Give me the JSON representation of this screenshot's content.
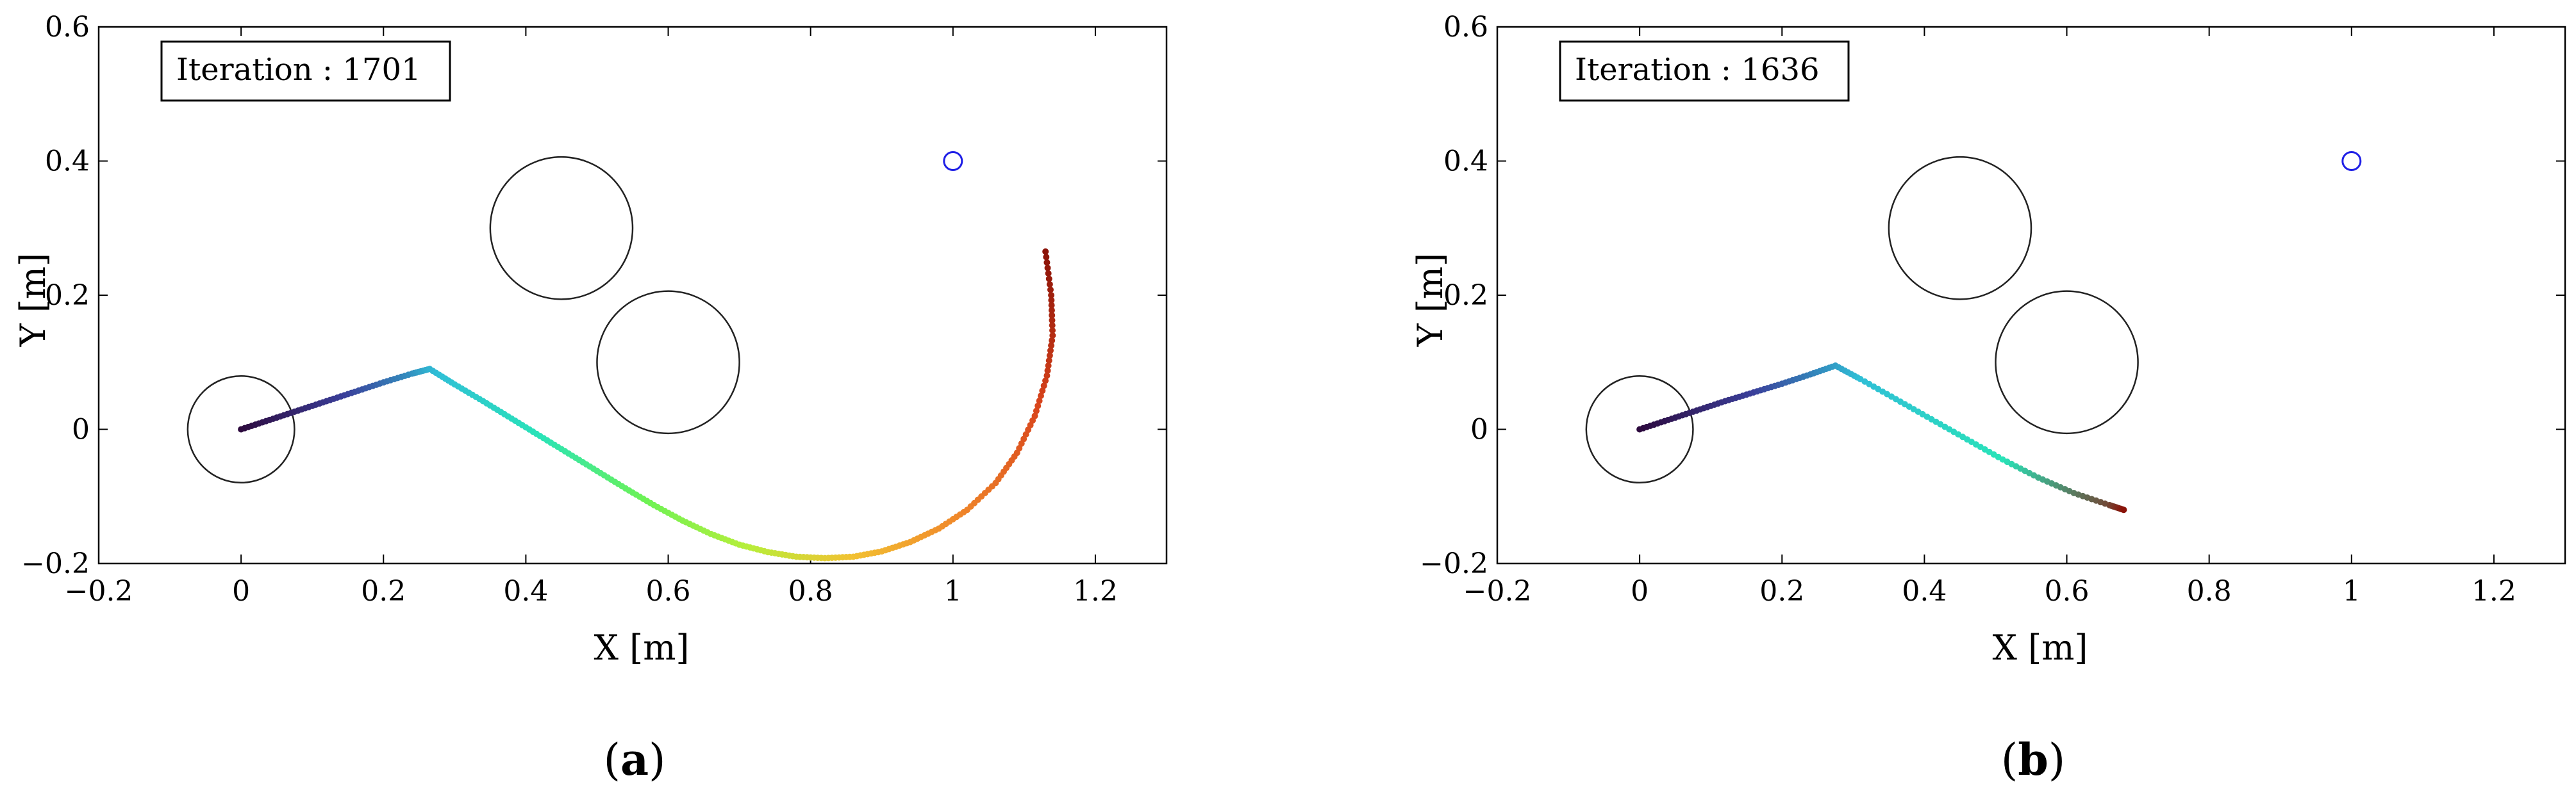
{
  "chart_data": [
    {
      "type": "scatter",
      "panel_label": "a",
      "iteration_label": "Iteration : 1701",
      "xlabel": "X [m]",
      "ylabel": "Y [m]",
      "xlim": [
        -0.2,
        1.3
      ],
      "ylim": [
        -0.2,
        0.6
      ],
      "xticks": [
        -0.2,
        0,
        0.2,
        0.4,
        0.6,
        0.8,
        1,
        1.2
      ],
      "xtick_labels": [
        "−0.2",
        "0",
        "0.2",
        "0.4",
        "0.6",
        "0.8",
        "1",
        "1.2"
      ],
      "yticks": [
        -0.2,
        0,
        0.2,
        0.4,
        0.6
      ],
      "ytick_labels": [
        "−0.2",
        "0",
        "0.2",
        "0.4",
        "0.6"
      ],
      "grid": false,
      "obstacles": [
        {
          "x": 0.0,
          "y": 0.0,
          "r": 0.075
        },
        {
          "x": 0.45,
          "y": 0.3,
          "r": 0.1
        },
        {
          "x": 0.6,
          "y": 0.1,
          "r": 0.1
        }
      ],
      "goal": {
        "x": 1.0,
        "y": 0.4,
        "color": "#1f1fe6"
      },
      "path_points": [
        [
          0.0,
          0.0
        ],
        [
          0.04,
          0.014
        ],
        [
          0.08,
          0.028
        ],
        [
          0.12,
          0.042
        ],
        [
          0.16,
          0.056
        ],
        [
          0.2,
          0.07
        ],
        [
          0.24,
          0.083
        ],
        [
          0.265,
          0.09
        ],
        [
          0.3,
          0.067
        ],
        [
          0.34,
          0.042
        ],
        [
          0.38,
          0.016
        ],
        [
          0.42,
          -0.01
        ],
        [
          0.46,
          -0.036
        ],
        [
          0.5,
          -0.062
        ],
        [
          0.54,
          -0.088
        ],
        [
          0.58,
          -0.113
        ],
        [
          0.62,
          -0.136
        ],
        [
          0.66,
          -0.156
        ],
        [
          0.7,
          -0.172
        ],
        [
          0.74,
          -0.183
        ],
        [
          0.78,
          -0.19
        ],
        [
          0.82,
          -0.192
        ],
        [
          0.86,
          -0.19
        ],
        [
          0.9,
          -0.182
        ],
        [
          0.94,
          -0.168
        ],
        [
          0.98,
          -0.148
        ],
        [
          1.02,
          -0.12
        ],
        [
          1.06,
          -0.08
        ],
        [
          1.09,
          -0.035
        ],
        [
          1.115,
          0.02
        ],
        [
          1.132,
          0.08
        ],
        [
          1.14,
          0.14
        ],
        [
          1.138,
          0.2
        ],
        [
          1.13,
          0.265
        ]
      ],
      "colormap": [
        "#2d0a3e",
        "#3a3f9a",
        "#2fbfd6",
        "#29e3b8",
        "#6cf255",
        "#b7ee3a",
        "#f2c132",
        "#f0882a",
        "#d8441c",
        "#8a1208"
      ]
    },
    {
      "type": "scatter",
      "panel_label": "b",
      "iteration_label": "Iteration : 1636",
      "xlabel": "X [m]",
      "ylabel": "Y [m]",
      "xlim": [
        -0.2,
        1.3
      ],
      "ylim": [
        -0.2,
        0.6
      ],
      "xticks": [
        -0.2,
        0,
        0.2,
        0.4,
        0.6,
        0.8,
        1,
        1.2
      ],
      "xtick_labels": [
        "−0.2",
        "0",
        "0.2",
        "0.4",
        "0.6",
        "0.8",
        "1",
        "1.2"
      ],
      "yticks": [
        -0.2,
        0,
        0.2,
        0.4,
        0.6
      ],
      "ytick_labels": [
        "−0.2",
        "0",
        "0.2",
        "0.4",
        "0.6"
      ],
      "grid": false,
      "obstacles": [
        {
          "x": 0.0,
          "y": 0.0,
          "r": 0.075
        },
        {
          "x": 0.45,
          "y": 0.3,
          "r": 0.1
        },
        {
          "x": 0.6,
          "y": 0.1,
          "r": 0.1
        }
      ],
      "goal": {
        "x": 1.0,
        "y": 0.4,
        "color": "#1f1fe6"
      },
      "path_points": [
        [
          0.0,
          0.0
        ],
        [
          0.04,
          0.014
        ],
        [
          0.08,
          0.028
        ],
        [
          0.12,
          0.042
        ],
        [
          0.16,
          0.055
        ],
        [
          0.2,
          0.068
        ],
        [
          0.24,
          0.082
        ],
        [
          0.275,
          0.095
        ],
        [
          0.31,
          0.075
        ],
        [
          0.36,
          0.045
        ],
        [
          0.41,
          0.015
        ],
        [
          0.46,
          -0.015
        ],
        [
          0.51,
          -0.045
        ],
        [
          0.56,
          -0.072
        ],
        [
          0.61,
          -0.095
        ],
        [
          0.66,
          -0.113
        ],
        [
          0.68,
          -0.12
        ]
      ],
      "colormap": [
        "#2d0a3e",
        "#3a3f9a",
        "#2fbfd6",
        "#29e3b8",
        "#8a1208"
      ]
    }
  ]
}
